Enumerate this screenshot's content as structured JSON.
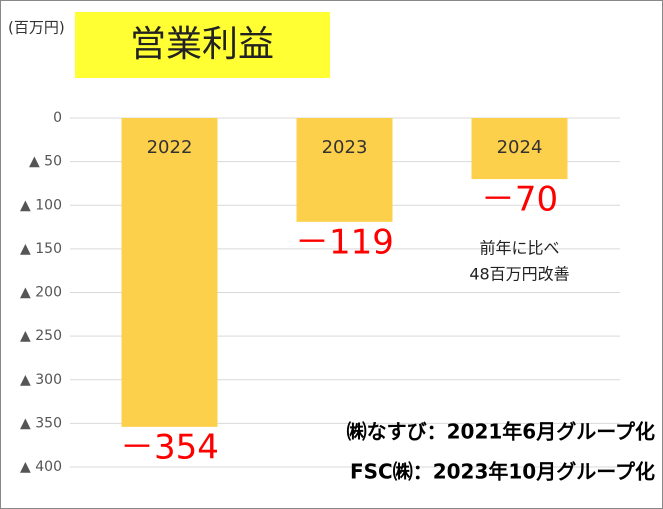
{
  "chart_data": {
    "type": "bar",
    "title": "営業利益",
    "unit_label": "(百万円)",
    "categories": [
      "2022",
      "2023",
      "2024"
    ],
    "values": [
      -354,
      -119,
      -70
    ],
    "value_labels": [
      "－354",
      "－119",
      "－70"
    ],
    "color": "#fdd04b",
    "value_label_color": "#ff0000",
    "ylim": [
      -400,
      0
    ],
    "yticks": [
      0,
      {
        "value": -50,
        "label": "▲ 50"
      },
      {
        "value": -100,
        "label": "▲ 100"
      },
      {
        "value": -150,
        "label": "▲ 150"
      },
      {
        "value": -200,
        "label": "▲ 200"
      },
      {
        "value": -250,
        "label": "▲ 250"
      },
      {
        "value": -300,
        "label": "▲ 300"
      },
      {
        "value": -350,
        "label": "▲ 350"
      },
      {
        "value": -400,
        "label": "▲ 400"
      }
    ],
    "grid": true,
    "annotation": [
      "前年に比べ",
      "48百万円改善"
    ],
    "notes": [
      "㈱なすび：2021年6月グループ化",
      "FSC㈱：2023年10月グループ化"
    ]
  }
}
